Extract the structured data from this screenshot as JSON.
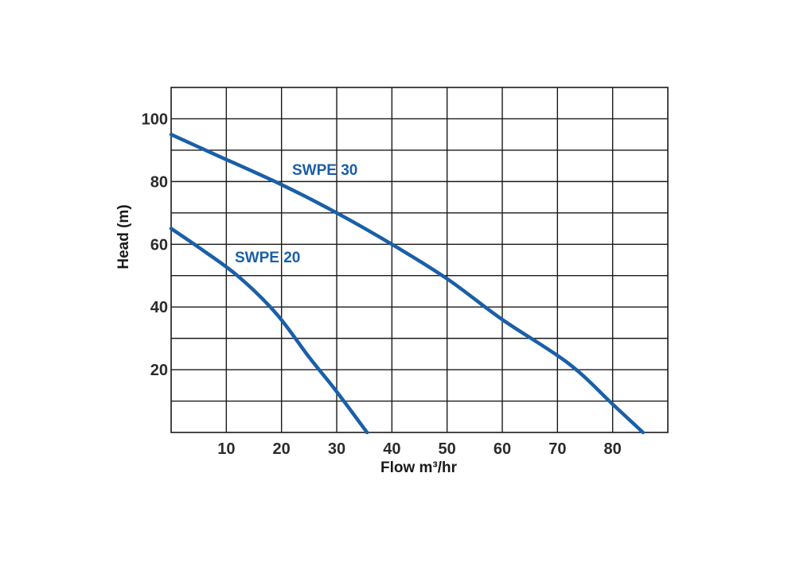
{
  "chart_data": {
    "type": "line",
    "title": "",
    "xlabel": "Flow m³/hr",
    "ylabel": "Head (m)",
    "xlim": [
      0,
      90
    ],
    "ylim": [
      0,
      110
    ],
    "x_ticks": [
      10,
      20,
      30,
      40,
      50,
      60,
      70,
      80
    ],
    "y_ticks": [
      20,
      40,
      60,
      80,
      100
    ],
    "grid": true,
    "line_color": "#1a5fa8",
    "series": [
      {
        "name": "SWPE 30",
        "x": [
          0,
          7.5,
          20,
          30,
          40,
          50,
          60,
          72,
          80,
          85.5
        ],
        "y": [
          95,
          89,
          79,
          70,
          60,
          49,
          36,
          22,
          9,
          0
        ]
      },
      {
        "name": "SWPE 20",
        "x": [
          0,
          5,
          12,
          19,
          25,
          30,
          35.5
        ],
        "y": [
          65,
          59,
          50,
          38,
          24,
          13,
          0
        ]
      }
    ]
  }
}
